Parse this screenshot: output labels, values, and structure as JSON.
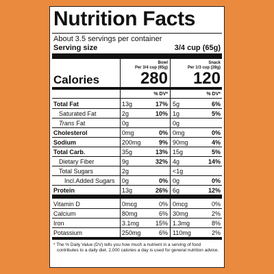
{
  "header": {
    "title": "Nutrition Facts",
    "servings": "About 3.5 servings per container",
    "serving_size_label": "Serving size",
    "serving_size": "3/4 cup (65g)",
    "calories_label": "Calories"
  },
  "columns": [
    {
      "name": "Bowl",
      "serving": "Per 3/4 cup (65g)",
      "calories": 280,
      "dv_header": "% DV*"
    },
    {
      "name": "Snack",
      "serving": "Per 1/3 cup (28g)",
      "calories": 120,
      "dv_header": "% DV*"
    }
  ],
  "nutrients": [
    {
      "label": "Total Fat",
      "bold": true,
      "level": 0,
      "values": [
        {
          "amount": "13g",
          "dv": "17%"
        },
        {
          "amount": "5g",
          "dv": "6%"
        }
      ]
    },
    {
      "label": "Saturated Fat",
      "level": 1,
      "values": [
        {
          "amount": "2g",
          "dv": "10%"
        },
        {
          "amount": "1g",
          "dv": "5%"
        }
      ]
    },
    {
      "italic": "Trans",
      "label": "Fat",
      "level": 1,
      "values": [
        {
          "amount": "0g"
        },
        {
          "amount": "0g"
        }
      ]
    },
    {
      "label": "Cholesterol",
      "bold": true,
      "level": 0,
      "values": [
        {
          "amount": "0mg",
          "dv": "0%"
        },
        {
          "amount": "0mg",
          "dv": "0%"
        }
      ]
    },
    {
      "label": "Sodium",
      "bold": true,
      "level": 0,
      "values": [
        {
          "amount": "200mg",
          "dv": "9%"
        },
        {
          "amount": "90mg",
          "dv": "4%"
        }
      ]
    },
    {
      "label": "Total Carb.",
      "bold": true,
      "level": 0,
      "values": [
        {
          "amount": "35g",
          "dv": "13%"
        },
        {
          "amount": "15g",
          "dv": "5%"
        }
      ]
    },
    {
      "label": "Dietary Fiber",
      "level": 1,
      "values": [
        {
          "amount": "9g",
          "dv": "32%"
        },
        {
          "amount": "4g",
          "dv": "14%"
        }
      ]
    },
    {
      "label": "Total Sugars",
      "level": 1,
      "values": [
        {
          "amount": "2g"
        },
        {
          "amount": "<1g"
        }
      ]
    },
    {
      "label": "Incl.Added Sugars",
      "level": 2,
      "values": [
        {
          "amount": "0g",
          "dv": "0%"
        },
        {
          "amount": "0g",
          "dv": "0%"
        }
      ]
    },
    {
      "label": "Protein",
      "bold": true,
      "level": 0,
      "values": [
        {
          "amount": "13g",
          "dv": "26%"
        },
        {
          "amount": "6g",
          "dv": "12%"
        }
      ]
    }
  ],
  "vitamins": [
    {
      "label": "Vitamin D",
      "values": [
        {
          "amount": "0mcg",
          "dv": "0%"
        },
        {
          "amount": "0mcg",
          "dv": "0%"
        }
      ]
    },
    {
      "label": "Calcium",
      "values": [
        {
          "amount": "80mg",
          "dv": "6%"
        },
        {
          "amount": "30mg",
          "dv": "2%"
        }
      ]
    },
    {
      "label": "Iron",
      "values": [
        {
          "amount": "3.1mg",
          "dv": "15%"
        },
        {
          "amount": "1.3mg",
          "dv": "8%"
        }
      ]
    },
    {
      "label": "Potassium",
      "values": [
        {
          "amount": "250mg",
          "dv": "6%"
        },
        {
          "amount": "110mg",
          "dv": "2%"
        }
      ]
    }
  ],
  "footnote": "* The % Daily Value (DV) tells you how much a nutrient in a serving of food contributes to a daily diet. 2,000 calories a day is used for general nutrition advice."
}
